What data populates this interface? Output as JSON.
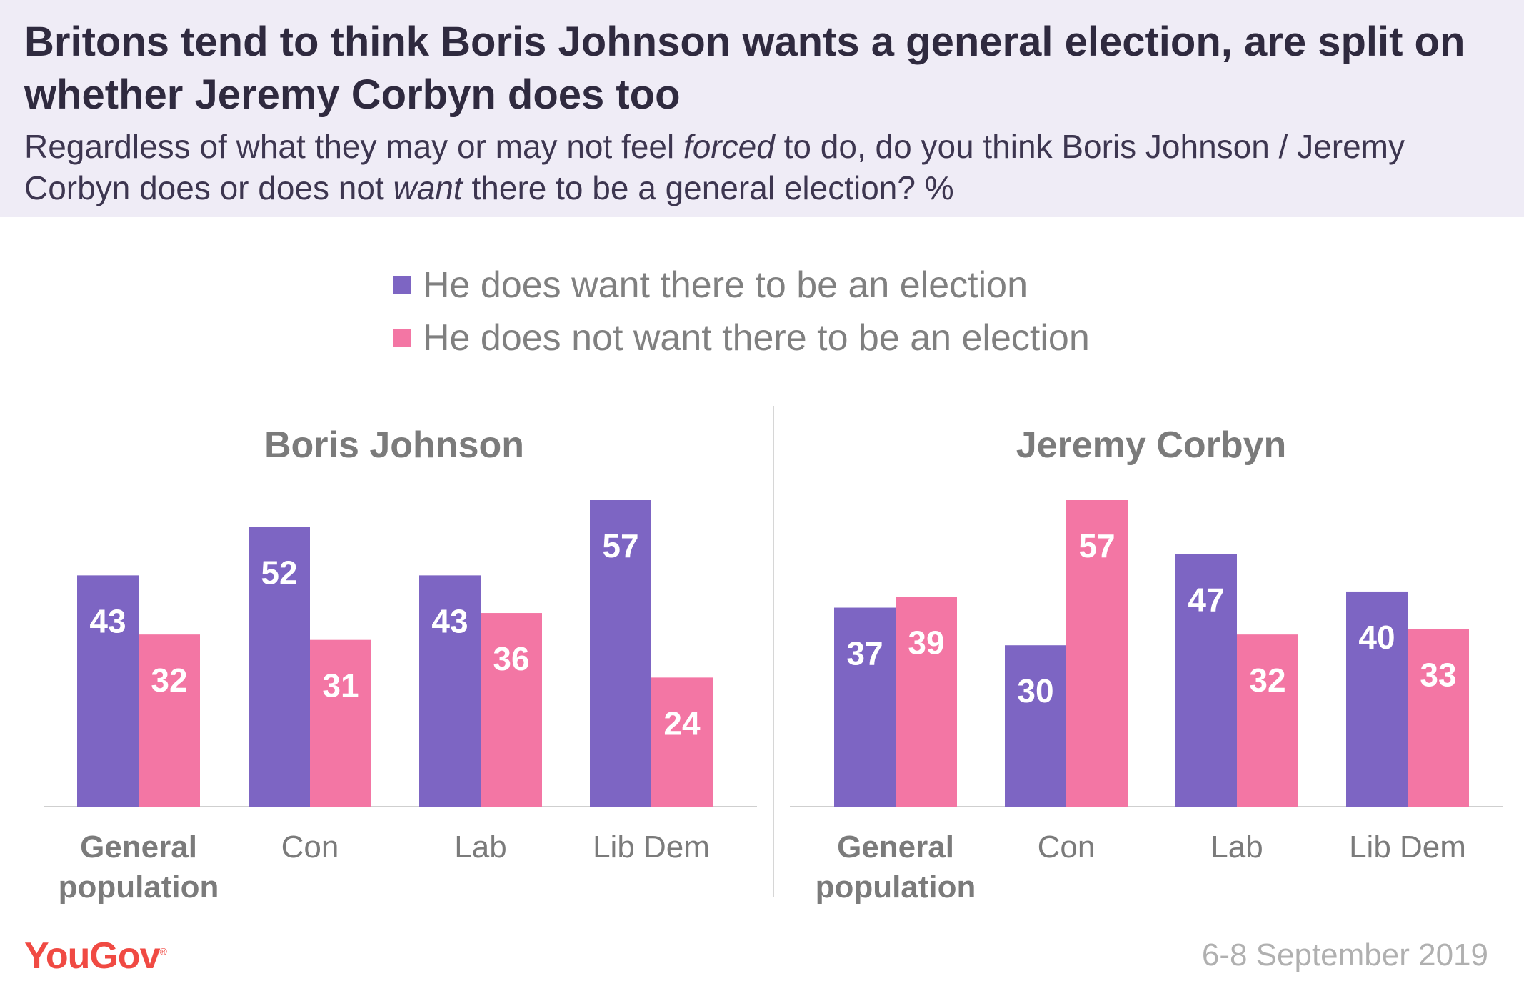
{
  "header": {
    "title": "Britons tend to think Boris Johnson wants a general election, are split on whether Jeremy Corbyn does too",
    "subtitle_before_forced": "Regardless of what they may or may not feel ",
    "subtitle_forced": "forced",
    "subtitle_middle": " to do, do you think Boris Johnson / Jeremy Corbyn does or does not ",
    "subtitle_want": "want",
    "subtitle_after": " there to be a general election? %"
  },
  "legend": [
    {
      "label": "He does want there to be an election",
      "color": "#7d65c3"
    },
    {
      "label": "He does not want there to be an election",
      "color": "#f376a4"
    }
  ],
  "chart_data": [
    {
      "type": "bar",
      "title": "Boris Johnson",
      "categories": [
        "General population",
        "Con",
        "Lab",
        "Lib Dem"
      ],
      "series": [
        {
          "name": "He does want there to be an election",
          "values": [
            43,
            52,
            43,
            57
          ],
          "color": "#7d65c3"
        },
        {
          "name": "He does not want there to be an election",
          "values": [
            32,
            31,
            36,
            24
          ],
          "color": "#f376a4"
        }
      ],
      "ylim": [
        0,
        57
      ]
    },
    {
      "type": "bar",
      "title": "Jeremy Corbyn",
      "categories": [
        "General population",
        "Con",
        "Lab",
        "Lib Dem"
      ],
      "series": [
        {
          "name": "He does want there to be an election",
          "values": [
            37,
            30,
            47,
            40
          ],
          "color": "#7d65c3"
        },
        {
          "name": "He does not want there to be an election",
          "values": [
            39,
            57,
            32,
            33
          ],
          "color": "#f376a4"
        }
      ],
      "ylim": [
        0,
        57
      ]
    }
  ],
  "footer": {
    "logo": "YouGov",
    "date": "6-8 September 2019"
  }
}
